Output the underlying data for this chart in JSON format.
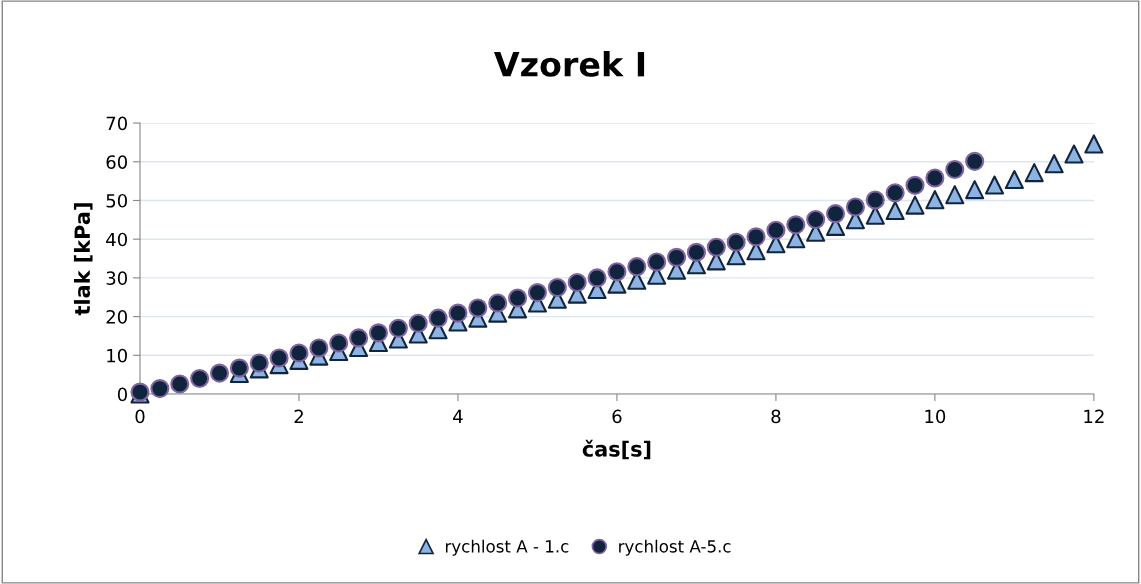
{
  "chart_data": {
    "type": "scatter",
    "title": "Vzorek I",
    "xlabel": "čas[s]",
    "ylabel": "tlak [kPa]",
    "xlim": [
      0,
      12
    ],
    "xticks": [
      0,
      2,
      4,
      6,
      8,
      10,
      12
    ],
    "ylim": [
      0,
      70
    ],
    "yticks": [
      0,
      10,
      20,
      30,
      40,
      50,
      60,
      70
    ],
    "grid": "y",
    "legend": "bottom",
    "series": [
      {
        "name": "rychlost A - 1.c",
        "color": "#8db3e2",
        "marker": "triangle",
        "x": [
          0,
          0.25,
          0.5,
          0.75,
          1,
          1.25,
          1.5,
          1.75,
          2,
          2.25,
          2.5,
          2.75,
          3,
          3.25,
          3.5,
          3.75,
          4,
          4.25,
          4.5,
          4.75,
          5,
          5.25,
          5.5,
          5.75,
          6,
          6.25,
          6.5,
          6.75,
          7,
          7.25,
          7.5,
          7.75,
          8,
          8.25,
          8.5,
          8.75,
          9,
          9.25,
          9.5,
          9.75,
          10,
          10.25,
          10.5,
          10.75,
          11,
          11.25,
          11.5,
          11.75,
          12
        ],
        "values": [
          0,
          null,
          null,
          null,
          null,
          5.3,
          6.5,
          7.6,
          8.7,
          9.8,
          11.0,
          12.0,
          13.3,
          14.2,
          15.5,
          16.6,
          18.6,
          19.6,
          20.9,
          22.0,
          23.5,
          24.5,
          25.8,
          27.0,
          28.4,
          29.4,
          30.7,
          32.0,
          33.4,
          34.4,
          35.7,
          37.0,
          38.8,
          40.1,
          41.8,
          43.3,
          45.0,
          46.2,
          47.4,
          48.8,
          50.2,
          51.5,
          52.8,
          54.0,
          55.4,
          57.2,
          59.5,
          62.0,
          64.6
        ]
      },
      {
        "name": "rychlost A-5.c",
        "color": "#10243e",
        "marker": "circle",
        "x": [
          0,
          0.25,
          0.5,
          0.75,
          1,
          1.25,
          1.5,
          1.75,
          2,
          2.25,
          2.5,
          2.75,
          3,
          3.25,
          3.5,
          3.75,
          4,
          4.25,
          4.5,
          4.75,
          5,
          5.25,
          5.5,
          5.75,
          6,
          6.25,
          6.5,
          6.75,
          7,
          7.25,
          7.5,
          7.75,
          8,
          8.25,
          8.5,
          8.75,
          9,
          9.25,
          9.5,
          9.75,
          10,
          10.25,
          10.5
        ],
        "values": [
          0.5,
          1.4,
          2.6,
          4.0,
          5.4,
          6.7,
          8.0,
          9.3,
          10.6,
          11.9,
          13.2,
          14.5,
          15.8,
          17.0,
          18.3,
          19.6,
          20.9,
          22.2,
          23.5,
          24.8,
          26.2,
          27.5,
          28.8,
          30.0,
          31.6,
          32.9,
          34.1,
          35.3,
          36.6,
          37.9,
          39.2,
          40.6,
          42.3,
          43.7,
          45.1,
          46.6,
          48.3,
          50.1,
          52.0,
          53.9,
          55.8,
          58.0,
          60.1
        ]
      }
    ]
  }
}
